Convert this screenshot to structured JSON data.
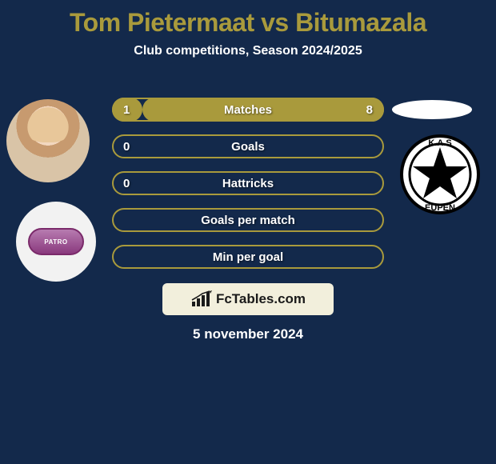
{
  "background_color": "#13294b",
  "title": {
    "text": "Tom Pietermaat vs Bitumazala",
    "color": "#a99a3c",
    "fontsize": 32
  },
  "subtitle": {
    "text": "Club competitions, Season 2024/2025",
    "color": "#ffffff",
    "fontsize": 16
  },
  "player_left": {
    "name": "Tom Pietermaat"
  },
  "player_right": {
    "name": "Bitumazala"
  },
  "club_left": {
    "badge_text": "PATRO"
  },
  "club_right": {
    "badge_top": "K.A.S",
    "badge_bottom": "EUPEN"
  },
  "bar_style": {
    "track_border_color": "#a99a3c",
    "track_fill_color": "transparent",
    "fill_color": "#a99a3c",
    "label_color": "#ffffff",
    "value_color": "#ffffff",
    "height": 30,
    "border_radius": 15
  },
  "bars": [
    {
      "label": "Matches",
      "left": "1",
      "right": "8",
      "left_pct": 11.1,
      "right_pct": 88.9
    },
    {
      "label": "Goals",
      "left": "0",
      "right": "",
      "left_pct": 0,
      "right_pct": 0
    },
    {
      "label": "Hattricks",
      "left": "0",
      "right": "",
      "left_pct": 0,
      "right_pct": 0
    },
    {
      "label": "Goals per match",
      "left": "",
      "right": "",
      "left_pct": 0,
      "right_pct": 0
    },
    {
      "label": "Min per goal",
      "left": "",
      "right": "",
      "left_pct": 0,
      "right_pct": 0
    }
  ],
  "brand": {
    "text": "FcTables.com",
    "box_bg": "#f2efdc",
    "text_color": "#1a1a1a",
    "icon_color": "#1a1a1a"
  },
  "date": {
    "text": "5 november 2024",
    "color": "#ffffff",
    "fontsize": 17
  }
}
